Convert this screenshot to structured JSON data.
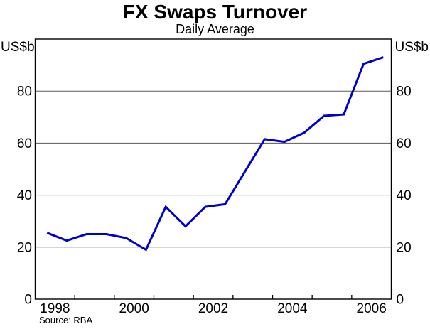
{
  "chart_data": {
    "type": "line",
    "title": "FX Swaps Turnover",
    "subtitle": "Daily Average",
    "ylabel_left": "US$b",
    "ylabel_right": "US$b",
    "source": "Source: RBA",
    "xlim": [
      1998,
      2007
    ],
    "ylim": [
      0,
      100
    ],
    "grid": true,
    "y_gridlines": [
      20,
      40,
      60,
      80
    ],
    "y_tick_labels": [
      0,
      20,
      40,
      60,
      80
    ],
    "x_tick_years": [
      1999,
      2000,
      2001,
      2002,
      2003,
      2004,
      2005,
      2006
    ],
    "x_year_labels": [
      1998,
      2000,
      2002,
      2004,
      2006
    ],
    "line_color": "#0000CC",
    "grid_color": "#5a5a5a",
    "axis_color": "#000000",
    "series": [
      {
        "name": "FX swaps turnover, daily average (US$b, semi-annual)",
        "x": [
          1998.3,
          1998.8,
          1999.3,
          1999.8,
          2000.3,
          2000.8,
          2001.3,
          2001.8,
          2002.3,
          2002.8,
          2003.3,
          2003.8,
          2004.3,
          2004.8,
          2005.3,
          2005.8,
          2006.3,
          2006.8
        ],
        "values": [
          25.5,
          22.5,
          25,
          25,
          23.5,
          19,
          35.5,
          28,
          35.5,
          36.5,
          49,
          61.5,
          60.5,
          64,
          70.5,
          71,
          90.5,
          93
        ]
      }
    ]
  }
}
